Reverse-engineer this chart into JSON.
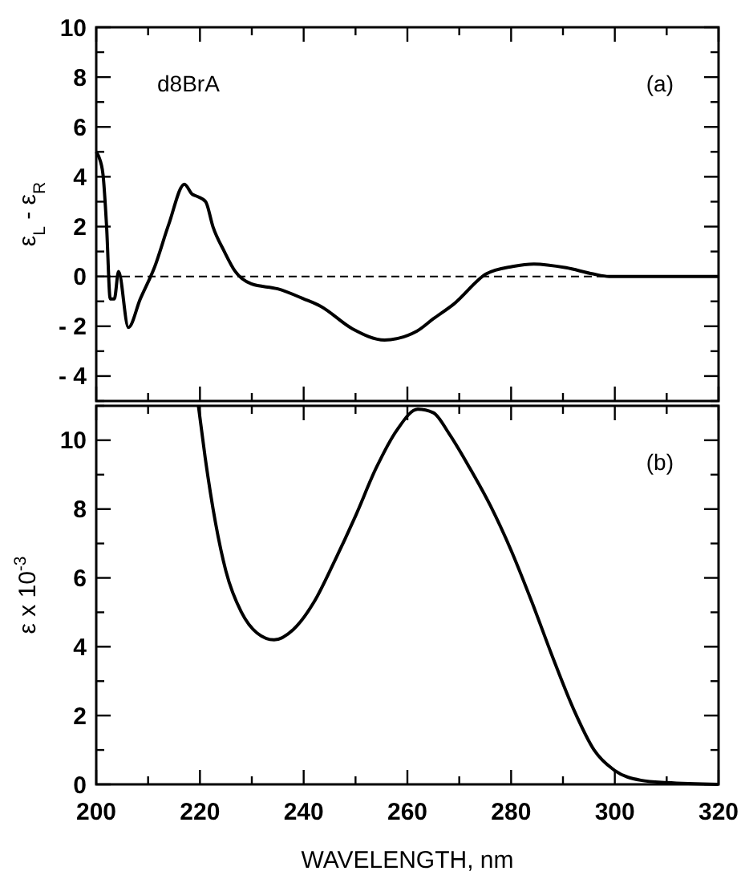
{
  "chart_data": [
    {
      "type": "line",
      "ylabel": "ε$_{L}$ - ε$_{R}$",
      "annotations": [
        "d8BrA",
        "(a)"
      ],
      "xlim": [
        200,
        320
      ],
      "ylim": [
        -5,
        10
      ],
      "tick_labels": "y",
      "grid": false,
      "xticks": [
        200,
        {
          "value": 210,
          "label": null
        },
        220,
        {
          "value": 230,
          "label": null
        },
        240,
        {
          "value": 250,
          "label": null
        },
        260,
        {
          "value": 270,
          "label": null
        },
        280,
        {
          "value": 290,
          "label": null
        },
        300,
        {
          "value": 310,
          "label": null
        },
        320
      ],
      "yticks": [
        {
          "value": -5,
          "label": null
        },
        {
          "value": -4,
          "label": "- 4"
        },
        {
          "value": -3,
          "label": null
        },
        {
          "value": -2,
          "label": "- 2"
        },
        {
          "value": -1,
          "label": null
        },
        0,
        {
          "value": 1,
          "label": null
        },
        2,
        {
          "value": 3,
          "label": null
        },
        4,
        {
          "value": 5,
          "label": null
        },
        6,
        {
          "value": 7,
          "label": null
        },
        8,
        {
          "value": 9,
          "label": null
        },
        10
      ],
      "ref_lines": [
        {
          "axis": "y",
          "value": 0,
          "color": "#000000",
          "line_style": "dashed"
        }
      ],
      "series": [
        {
          "color": "#000000",
          "x": [
            200,
            200.5,
            201.3,
            202,
            202.7,
            203.5,
            204.3,
            206.2,
            208.5,
            211.3,
            214,
            217,
            218.5,
            219.6,
            221.1,
            222.5,
            224.7,
            226.8,
            229.9,
            235,
            240,
            243.3,
            249.4,
            255.6,
            261.8,
            265,
            269,
            275.2,
            280.3,
            284.4,
            290.6,
            295.8,
            298.9,
            305,
            320
          ],
          "values": [
            5,
            4.8,
            4.1,
            2,
            -0.9,
            -0.9,
            0.2,
            -2.05,
            -0.9,
            0.4,
            2.1,
            3.7,
            3.3,
            3.2,
            3.0,
            2.0,
            1.0,
            0.2,
            -0.3,
            -0.5,
            -0.9,
            -1.2,
            -2.1,
            -2.55,
            -2.2,
            -1.7,
            -1.1,
            0.1,
            0.4,
            0.5,
            0.35,
            0.1,
            0,
            0,
            0
          ]
        }
      ]
    },
    {
      "type": "line",
      "ylabel": "ε x 10$^{-3}$",
      "xlabel": "WAVELENGTH, nm",
      "annotations": [
        "(b)"
      ],
      "xlim": [
        200,
        320
      ],
      "ylim": [
        0,
        11
      ],
      "grid": false,
      "xticks": [
        200,
        {
          "value": 210,
          "label": null
        },
        220,
        {
          "value": 230,
          "label": null
        },
        240,
        {
          "value": 250,
          "label": null
        },
        260,
        {
          "value": 270,
          "label": null
        },
        280,
        {
          "value": 290,
          "label": null
        },
        300,
        {
          "value": 310,
          "label": null
        },
        320
      ],
      "yticks": [
        0,
        {
          "value": 1,
          "label": null
        },
        2,
        {
          "value": 3,
          "label": null
        },
        4,
        {
          "value": 5,
          "label": null
        },
        6,
        {
          "value": 7,
          "label": null
        },
        8,
        {
          "value": 9,
          "label": null
        },
        10,
        {
          "value": 11,
          "label": null
        }
      ],
      "series": [
        {
          "color": "#000000",
          "x": [
            219.7,
            221,
            223,
            225,
            228,
            231,
            234.3,
            238,
            242,
            246,
            250,
            254,
            258,
            262,
            265,
            268,
            272,
            276,
            280,
            284,
            288,
            292,
            296,
            300,
            305,
            310,
            320
          ],
          "values": [
            11,
            9.5,
            7.6,
            6.2,
            5.0,
            4.4,
            4.2,
            4.5,
            5.3,
            6.5,
            7.8,
            9.2,
            10.3,
            10.9,
            10.8,
            10.2,
            9.2,
            8.1,
            6.8,
            5.3,
            3.7,
            2.2,
            1.0,
            0.4,
            0.12,
            0.05,
            0
          ]
        }
      ]
    }
  ]
}
